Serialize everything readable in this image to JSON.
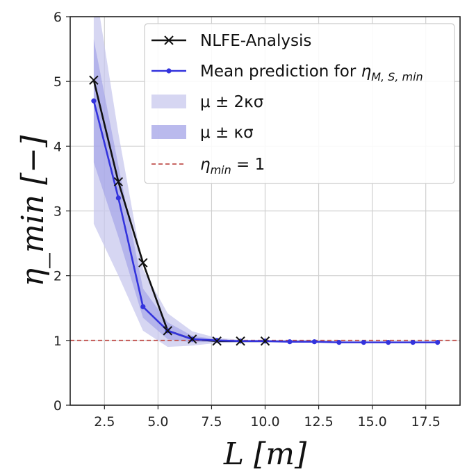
{
  "chart_data": {
    "type": "line",
    "title": "",
    "xlabel": "L [m]",
    "ylabel": "η_min [−]",
    "xlim": [
      0.9,
      19.1
    ],
    "ylim": [
      0,
      6
    ],
    "grid": true,
    "legend_position": "top-right",
    "x_ticks": [
      2.5,
      5.0,
      7.5,
      10.0,
      12.5,
      15.0,
      17.5
    ],
    "x_tick_labels": [
      "2.5",
      "5.0",
      "7.5",
      "10.0",
      "12.5",
      "15.0",
      "17.5"
    ],
    "y_ticks": [
      0,
      1,
      2,
      3,
      4,
      5,
      6
    ],
    "y_tick_labels": [
      "0",
      "1",
      "2",
      "3",
      "4",
      "5",
      "6"
    ],
    "reference_line": {
      "label": "η_min = 1",
      "y": 1,
      "color": "#c0504d"
    },
    "series": [
      {
        "name": "NLFE-Analysis",
        "color": "#111111",
        "marker": "x",
        "x": [
          2.0,
          3.15,
          4.3,
          5.45,
          6.6,
          7.75,
          8.85,
          10.0
        ],
        "y": [
          5.02,
          3.45,
          2.2,
          1.15,
          1.02,
          0.99,
          0.99,
          0.99
        ]
      },
      {
        "name": "Mean prediction for η_M,S,min",
        "color": "#3333dd",
        "marker": "o",
        "x": [
          2.0,
          3.15,
          4.3,
          5.45,
          6.6,
          7.75,
          8.85,
          10.0,
          11.15,
          12.3,
          13.45,
          14.6,
          15.75,
          16.9,
          18.05
        ],
        "y": [
          4.7,
          3.2,
          1.52,
          1.15,
          1.02,
          1.0,
          0.99,
          0.99,
          0.98,
          0.98,
          0.97,
          0.97,
          0.97,
          0.97,
          0.97
        ]
      }
    ],
    "bands": [
      {
        "name": "μ ± 2κσ",
        "color": "#c8c8ee",
        "x": [
          2.0,
          3.15,
          4.3,
          5.45,
          6.6,
          7.75,
          8.85,
          10.0,
          11.15,
          12.3,
          13.45,
          14.6,
          15.75,
          16.9,
          18.05
        ],
        "lower": [
          2.8,
          2.0,
          1.15,
          0.9,
          0.92,
          0.96,
          0.97,
          0.97,
          0.97,
          0.97,
          0.96,
          0.96,
          0.96,
          0.96,
          0.96
        ],
        "upper": [
          6.6,
          4.2,
          2.1,
          1.42,
          1.14,
          1.04,
          1.01,
          1.01,
          0.99,
          0.99,
          0.98,
          0.98,
          0.98,
          0.98,
          0.98
        ]
      },
      {
        "name": "μ ± κσ",
        "color": "#9c9ce6",
        "x": [
          2.0,
          3.15,
          4.3,
          5.45,
          6.6,
          7.75,
          8.85,
          10.0,
          11.15,
          12.3,
          13.45,
          14.6,
          15.75,
          16.9,
          18.05
        ],
        "lower": [
          3.75,
          2.6,
          1.35,
          1.02,
          0.97,
          0.98,
          0.98,
          0.98,
          0.975,
          0.975,
          0.965,
          0.965,
          0.965,
          0.965,
          0.965
        ],
        "upper": [
          5.65,
          3.7,
          1.8,
          1.28,
          1.07,
          1.02,
          1.0,
          1.0,
          0.985,
          0.985,
          0.975,
          0.975,
          0.975,
          0.975,
          0.975
        ]
      }
    ],
    "legend": [
      {
        "key": "nlfe",
        "label": "NLFE-Analysis"
      },
      {
        "key": "mean",
        "label": "Mean prediction for",
        "math": "η",
        "sub": "M, S, min"
      },
      {
        "key": "band2",
        "label": "μ ± 2κσ"
      },
      {
        "key": "band1",
        "label": "μ ± κσ"
      },
      {
        "key": "ref",
        "label": "",
        "math": "η",
        "sub": "min",
        "suffix": " = 1"
      }
    ]
  }
}
